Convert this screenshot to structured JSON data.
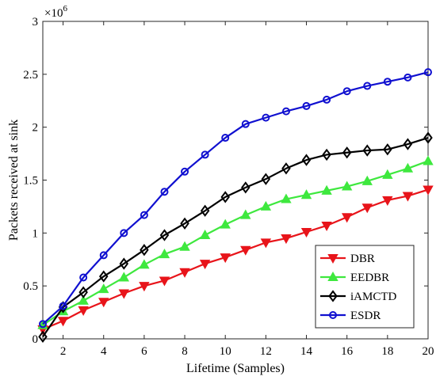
{
  "chart_data": {
    "type": "line",
    "xlabel": "Lifetime (Samples)",
    "ylabel": "Packets received at sink",
    "y_multiplier": "×10",
    "y_multiplier_exp": "6",
    "xlim": [
      1,
      20
    ],
    "ylim": [
      0,
      3
    ],
    "x_ticks": [
      2,
      4,
      6,
      8,
      10,
      12,
      14,
      16,
      18,
      20
    ],
    "y_ticks": [
      0,
      0.5,
      1,
      1.5,
      2,
      2.5,
      3
    ],
    "y_tick_labels": [
      "0",
      "0.5",
      "1",
      "1.5",
      "2",
      "2.5",
      "3"
    ],
    "grid": false,
    "legend_position": "bottom-right",
    "x": [
      1,
      2,
      3,
      4,
      5,
      6,
      7,
      8,
      9,
      10,
      11,
      12,
      13,
      14,
      15,
      16,
      17,
      18,
      19,
      20
    ],
    "series": [
      {
        "name": "DBR",
        "color": "#e8141a",
        "marker": "triangle-down",
        "values": [
          0.09,
          0.17,
          0.27,
          0.35,
          0.43,
          0.5,
          0.55,
          0.63,
          0.71,
          0.77,
          0.84,
          0.91,
          0.95,
          1.01,
          1.07,
          1.15,
          1.24,
          1.31,
          1.35,
          1.41
        ]
      },
      {
        "name": "EEDBR",
        "color": "#3ee83e",
        "marker": "triangle-up",
        "values": [
          0.13,
          0.26,
          0.36,
          0.47,
          0.58,
          0.7,
          0.8,
          0.87,
          0.98,
          1.08,
          1.17,
          1.25,
          1.32,
          1.36,
          1.4,
          1.44,
          1.49,
          1.55,
          1.61,
          1.68
        ]
      },
      {
        "name": "iAMCTD",
        "color": "#000000",
        "marker": "diamond",
        "values": [
          0.02,
          0.3,
          0.44,
          0.59,
          0.71,
          0.84,
          0.98,
          1.09,
          1.21,
          1.34,
          1.43,
          1.51,
          1.61,
          1.69,
          1.74,
          1.76,
          1.78,
          1.79,
          1.84,
          1.9
        ]
      },
      {
        "name": "ESDR",
        "color": "#1010d0",
        "marker": "circle",
        "values": [
          0.14,
          0.31,
          0.58,
          0.79,
          1.0,
          1.17,
          1.39,
          1.58,
          1.74,
          1.9,
          2.03,
          2.09,
          2.15,
          2.2,
          2.26,
          2.34,
          2.39,
          2.43,
          2.47,
          2.52
        ]
      }
    ]
  }
}
